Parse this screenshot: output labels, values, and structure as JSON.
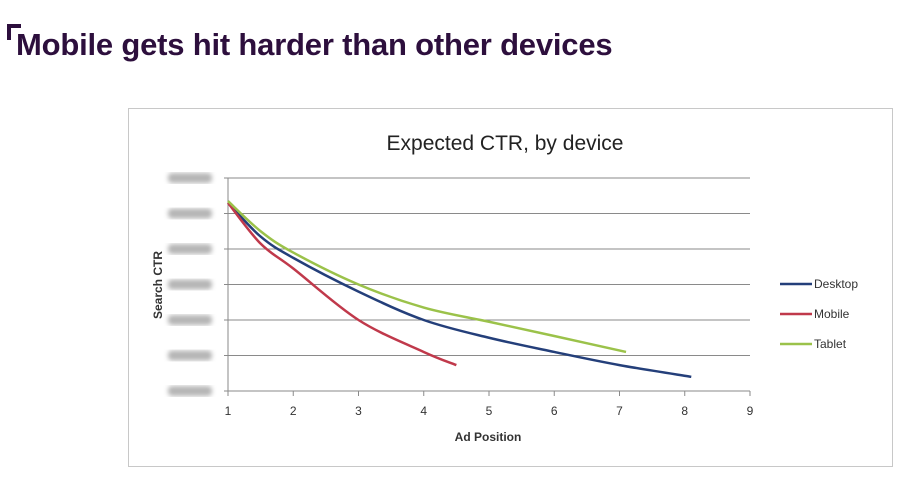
{
  "slide": {
    "title": "Mobile gets hit harder than other devices"
  },
  "chart_data": {
    "type": "line",
    "title": "Expected CTR, by device",
    "xlabel": "Ad Position",
    "ylabel": "Search CTR",
    "xlim": [
      1,
      9
    ],
    "ylim": [
      0,
      6
    ],
    "xticks": [
      1,
      2,
      3,
      4,
      5,
      6,
      7,
      8,
      9
    ],
    "yticks": [
      0,
      1,
      2,
      3,
      4,
      5,
      6
    ],
    "grid": true,
    "legend_position": "right",
    "series": [
      {
        "name": "Desktop",
        "color": "#243f7a",
        "x": [
          1,
          1.5,
          2,
          3,
          4,
          5,
          6,
          7,
          8.1
        ],
        "y": [
          5.3,
          4.35,
          3.75,
          2.8,
          2.0,
          1.5,
          1.1,
          0.73,
          0.4
        ]
      },
      {
        "name": "Mobile",
        "color": "#c0394b",
        "x": [
          1,
          1.5,
          2,
          3,
          4,
          4.5
        ],
        "y": [
          5.3,
          4.15,
          3.45,
          2.0,
          1.1,
          0.73
        ]
      },
      {
        "name": "Tablet",
        "color": "#9bc24a",
        "x": [
          1,
          1.5,
          2,
          3,
          4,
          5,
          6,
          7.1
        ],
        "y": [
          5.35,
          4.5,
          3.9,
          3.0,
          2.35,
          1.95,
          1.55,
          1.1
        ]
      }
    ]
  }
}
